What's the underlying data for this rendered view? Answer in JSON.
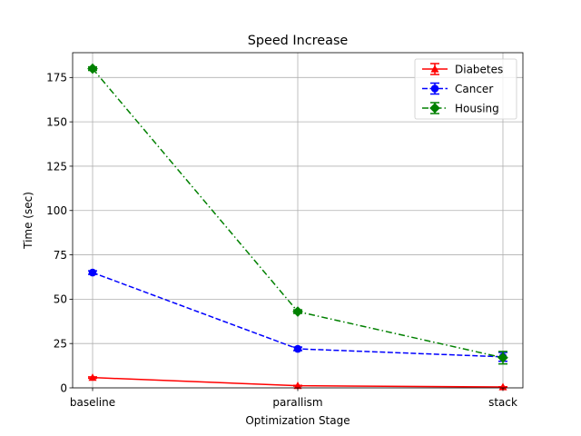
{
  "chart_data": {
    "type": "line",
    "title": "Speed Increase",
    "xlabel": "Optimization Stage",
    "ylabel": "Time (sec)",
    "categories": [
      "baseline",
      "parallism",
      "stack"
    ],
    "ylim": [
      0,
      189
    ],
    "yticks": [
      0,
      25,
      50,
      75,
      100,
      125,
      150,
      175
    ],
    "grid": true,
    "legend_position": "top-right",
    "series": [
      {
        "name": "Diabetes",
        "values": [
          5.8,
          1.2,
          0.5
        ],
        "errors": [
          0.4,
          0.2,
          0.1
        ],
        "color": "#ff0000",
        "linestyle": "solid",
        "marker": "triangle"
      },
      {
        "name": "Cancer",
        "values": [
          65,
          22,
          17.5
        ],
        "errors": [
          1.0,
          1.0,
          2.5
        ],
        "color": "#0000ff",
        "linestyle": "dashed",
        "marker": "circle"
      },
      {
        "name": "Housing",
        "values": [
          180,
          43,
          17
        ],
        "errors": [
          1.0,
          1.0,
          3.5
        ],
        "color": "#008000",
        "linestyle": "dashdot",
        "marker": "diamond"
      }
    ]
  }
}
